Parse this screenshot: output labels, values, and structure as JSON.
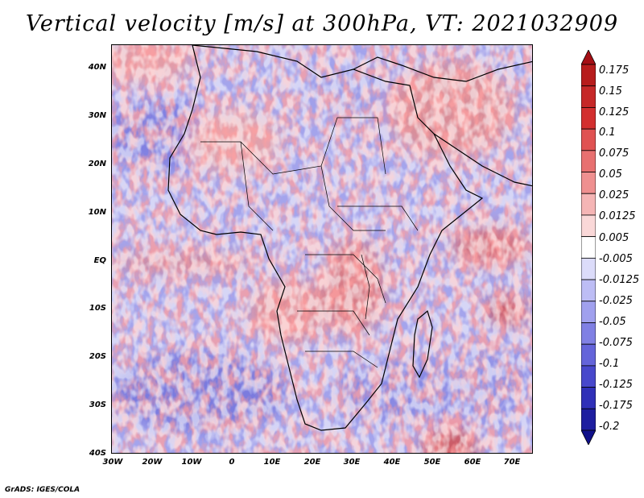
{
  "title": "Vertical velocity [m/s] at 300hPa, VT: 2021032909",
  "credit": "GrADS: IGES/COLA",
  "lat_labels": [
    "40N",
    "30N",
    "20N",
    "10N",
    "EQ",
    "10S",
    "20S",
    "30S",
    "40S"
  ],
  "lon_labels": [
    "30W",
    "20W",
    "10W",
    "0",
    "10E",
    "20E",
    "30E",
    "40E",
    "50E",
    "60E",
    "70E"
  ],
  "colorbar": {
    "labels": [
      "0.175",
      "0.15",
      "0.125",
      "0.1",
      "0.075",
      "0.05",
      "0.025",
      "0.0125",
      "0.005",
      "-0.005",
      "-0.0125",
      "-0.025",
      "-0.05",
      "-0.075",
      "-0.1",
      "-0.125",
      "-0.175",
      "-0.2"
    ],
    "colors": [
      "#a50f15",
      "#b71c1c",
      "#c62828",
      "#d32f2f",
      "#e05252",
      "#e87070",
      "#ef9090",
      "#f5b5b5",
      "#fad8d8",
      "#ffffff",
      "#dcdcfa",
      "#bdbdf5",
      "#a0a0ee",
      "#8080e4",
      "#6464da",
      "#4848cc",
      "#3030b8",
      "#1e1ea0",
      "#10108a"
    ]
  },
  "field": {
    "positive_color": "#e05252",
    "negative_color": "#6464da",
    "background": "#a8a8ee"
  }
}
